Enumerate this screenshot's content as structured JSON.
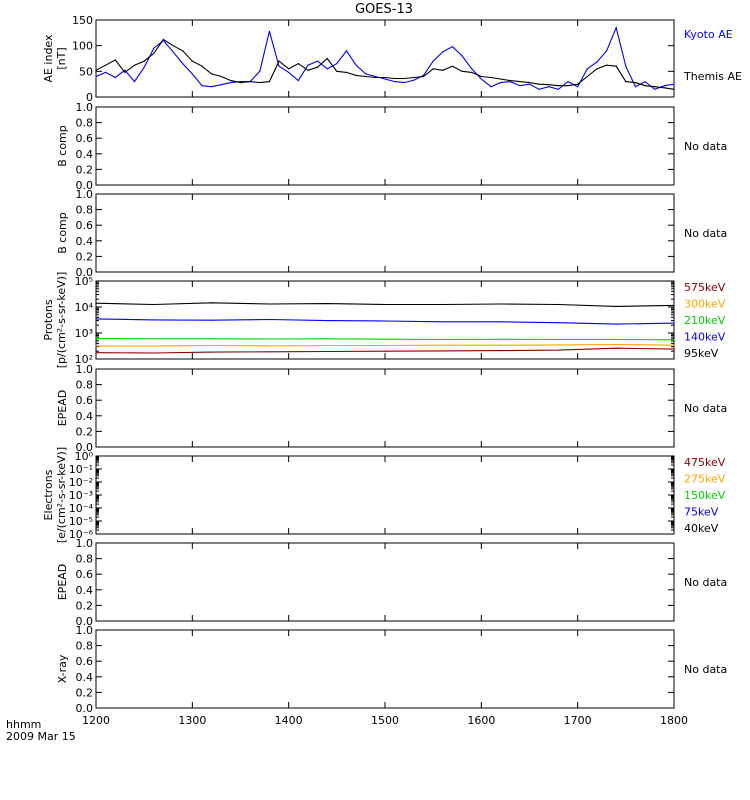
{
  "title": "GOES-13",
  "xaxis": {
    "label_line1": "hhmm",
    "label_line2": "2009 Mar 15",
    "ticks": [
      "1200",
      "1300",
      "1400",
      "1500",
      "1600",
      "1700",
      "1800"
    ]
  },
  "no_data_text": "No data",
  "colors": {
    "black": "#000000",
    "blue": "#0000ff",
    "green": "#00d000",
    "orange": "#ffa500",
    "darkred": "#8b0000"
  },
  "chart_data": [
    {
      "id": "ae",
      "type": "line",
      "ylabel": [
        "AE index",
        "[nT]"
      ],
      "ylim": [
        0,
        150
      ],
      "yticks": [
        "0",
        "50",
        "100",
        "150"
      ],
      "x": [
        1200,
        1210,
        1220,
        1230,
        1240,
        1250,
        1260,
        1270,
        1280,
        1290,
        1300,
        1310,
        1320,
        1330,
        1340,
        1350,
        1360,
        1370,
        1380,
        1390,
        1400,
        1410,
        1420,
        1430,
        1440,
        1450,
        1460,
        1470,
        1480,
        1490,
        1500,
        1510,
        1520,
        1530,
        1540,
        1550,
        1560,
        1570,
        1580,
        1590,
        1600,
        1610,
        1620,
        1630,
        1640,
        1650,
        1660,
        1670,
        1680,
        1690,
        1700,
        1710,
        1720,
        1730,
        1740,
        1750,
        1760,
        1770,
        1780,
        1790,
        1800
      ],
      "series": [
        {
          "name": "Kyoto AE",
          "color": "#0000ff",
          "values": [
            40,
            48,
            38,
            52,
            30,
            58,
            95,
            110,
            88,
            65,
            45,
            22,
            20,
            24,
            28,
            30,
            30,
            50,
            128,
            60,
            48,
            32,
            62,
            70,
            55,
            65,
            90,
            62,
            45,
            40,
            35,
            30,
            28,
            33,
            42,
            70,
            88,
            98,
            80,
            55,
            35,
            20,
            28,
            30,
            22,
            25,
            15,
            20,
            15,
            30,
            20,
            55,
            68,
            90,
            135,
            60,
            20,
            30,
            15,
            22,
            25
          ]
        },
        {
          "name": "Themis AE",
          "color": "#000000",
          "values": [
            52,
            62,
            72,
            48,
            62,
            70,
            85,
            112,
            100,
            90,
            70,
            60,
            45,
            40,
            32,
            28,
            30,
            28,
            30,
            70,
            55,
            65,
            52,
            58,
            75,
            50,
            48,
            42,
            40,
            38,
            38,
            36,
            36,
            38,
            40,
            55,
            52,
            60,
            50,
            48,
            40,
            38,
            35,
            32,
            30,
            28,
            25,
            24,
            22,
            22,
            25,
            40,
            55,
            62,
            60,
            30,
            28,
            22,
            20,
            18,
            15
          ]
        }
      ],
      "legend": [
        "Kyoto AE",
        "Themis AE"
      ]
    },
    {
      "id": "bcomp1",
      "type": "line",
      "ylabel": [
        "B comp"
      ],
      "ylim": [
        0,
        1
      ],
      "yticks": [
        "0.0",
        "0.2",
        "0.4",
        "0.6",
        "0.8",
        "1.0"
      ],
      "no_data": true
    },
    {
      "id": "bcomp2",
      "type": "line",
      "ylabel": [
        "B comp"
      ],
      "ylim": [
        0,
        1
      ],
      "yticks": [
        "0.0",
        "0.2",
        "0.4",
        "0.6",
        "0.8",
        "1.0"
      ],
      "no_data": true
    },
    {
      "id": "protons",
      "type": "line",
      "ylabel": [
        "Protons",
        "[p/(cm²-s-sr-keV)]"
      ],
      "scale": "log",
      "ylim": [
        100,
        100000
      ],
      "yticks": [
        "10²",
        "10³",
        "10⁴",
        "10⁵"
      ],
      "x": [
        1200,
        1260,
        1320,
        1380,
        1440,
        1500,
        1560,
        1620,
        1680,
        1740,
        1800
      ],
      "series": [
        {
          "name": "95keV",
          "color": "#000000",
          "values": [
            14000,
            12500,
            14500,
            13000,
            13500,
            12500,
            12500,
            13000,
            12500,
            10500,
            11500
          ]
        },
        {
          "name": "140keV",
          "color": "#0000ff",
          "values": [
            3500,
            3200,
            3100,
            3300,
            3000,
            2900,
            2700,
            2700,
            2500,
            2200,
            2400
          ]
        },
        {
          "name": "210keV",
          "color": "#00d000",
          "values": [
            620,
            600,
            600,
            590,
            600,
            580,
            560,
            570,
            560,
            560,
            550
          ]
        },
        {
          "name": "300keV",
          "color": "#ffa500",
          "values": [
            320,
            320,
            330,
            320,
            330,
            330,
            340,
            340,
            350,
            360,
            340
          ]
        },
        {
          "name": "575keV",
          "color": "#8b0000",
          "values": [
            175,
            170,
            185,
            190,
            195,
            200,
            205,
            210,
            220,
            260,
            240
          ]
        }
      ],
      "legend": [
        "575keV",
        "300keV",
        "210keV",
        "140keV",
        "95keV"
      ]
    },
    {
      "id": "epead1",
      "type": "line",
      "ylabel": [
        "EPEAD"
      ],
      "ylim": [
        0,
        1
      ],
      "yticks": [
        "0.0",
        "0.2",
        "0.4",
        "0.6",
        "0.8",
        "1.0"
      ],
      "no_data": true
    },
    {
      "id": "electrons",
      "type": "line",
      "ylabel": [
        "Electrons",
        "[e/(cm²-s-sr-keV)]"
      ],
      "scale": "log",
      "ylim": [
        1e-06,
        1
      ],
      "yticks": [
        "10⁻⁶",
        "10⁻⁵",
        "10⁻⁴",
        "10⁻³",
        "10⁻²",
        "10⁻¹",
        "10⁰"
      ],
      "series": [],
      "legend": [
        "475keV",
        "275keV",
        "150keV",
        "75keV",
        "40keV"
      ],
      "legend_colors": [
        "#8b0000",
        "#ffa500",
        "#00d000",
        "#0000ff",
        "#000000"
      ]
    },
    {
      "id": "epead2",
      "type": "line",
      "ylabel": [
        "EPEAD"
      ],
      "ylim": [
        0,
        1
      ],
      "yticks": [
        "0.0",
        "0.2",
        "0.4",
        "0.6",
        "0.8",
        "1.0"
      ],
      "no_data": true
    },
    {
      "id": "xray",
      "type": "line",
      "ylabel": [
        "X-ray"
      ],
      "ylim": [
        0,
        1
      ],
      "yticks": [
        "0.0",
        "0.2",
        "0.4",
        "0.6",
        "0.8",
        "1.0"
      ],
      "no_data": true
    }
  ]
}
